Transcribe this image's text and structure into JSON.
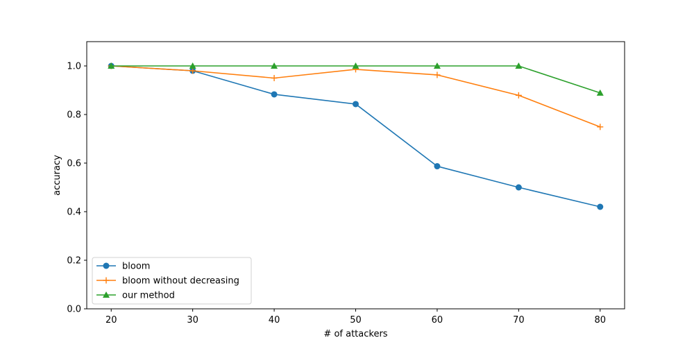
{
  "chart_data": {
    "type": "line",
    "title": "",
    "xlabel": "# of attackers",
    "ylabel": "accuracy",
    "x": [
      20,
      30,
      40,
      50,
      60,
      70,
      80
    ],
    "xlim": [
      17,
      83
    ],
    "ylim": [
      0.0,
      1.1
    ],
    "xticks": [
      "20",
      "30",
      "40",
      "50",
      "60",
      "70",
      "80"
    ],
    "yticks": [
      "0.0",
      "0.2",
      "0.4",
      "0.6",
      "0.8",
      "1.0"
    ],
    "grid": false,
    "legend_position": "lower-left",
    "series": [
      {
        "name": "bloom",
        "color": "#1f77b4",
        "marker": "circle",
        "values": [
          1.0,
          0.98,
          0.883,
          0.843,
          0.587,
          0.5,
          0.42
        ]
      },
      {
        "name": "bloom without decreasing",
        "color": "#ff7f0e",
        "marker": "plus",
        "values": [
          1.0,
          0.98,
          0.95,
          0.986,
          0.963,
          0.879,
          0.749
        ]
      },
      {
        "name": "our method",
        "color": "#2ca02c",
        "marker": "triangle",
        "values": [
          1.0,
          1.0,
          1.0,
          1.0,
          1.0,
          1.0,
          0.889
        ]
      }
    ]
  }
}
